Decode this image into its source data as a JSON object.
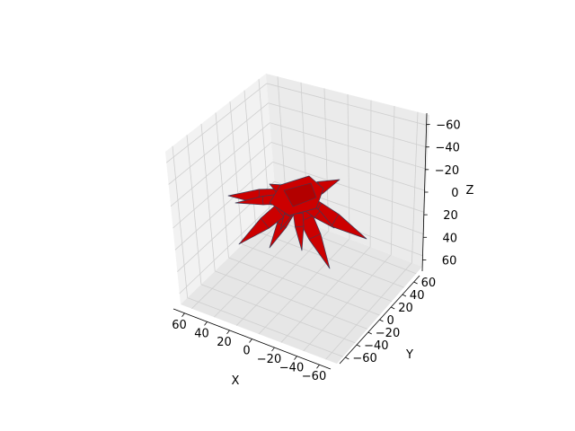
{
  "chart_data": {
    "type": "surface3d",
    "title": "",
    "xlabel": "X",
    "ylabel": "Y",
    "zlabel": "Z",
    "xlim": [
      -75,
      75
    ],
    "ylim": [
      -75,
      75
    ],
    "zlim": [
      -75,
      75
    ],
    "z_axis_inverted": true,
    "x_axis_inverted": true,
    "xticks": [
      "60",
      "40",
      "20",
      "0",
      "−20",
      "−40",
      "−60"
    ],
    "yticks": [
      "−60",
      "−40",
      "−20",
      "0",
      "20",
      "40",
      "60"
    ],
    "zticks": [
      "−60",
      "−40",
      "−20",
      "0",
      "20",
      "40",
      "60"
    ],
    "grid": true,
    "surface_color": "#cc0000",
    "edge_color": "#3a3a55",
    "pane_colors": [
      "#f2f2f2",
      "#ebebeb",
      "#e6e6e6"
    ],
    "shape": "star-shaped surface with about 8 pointed arms radiating from a central hub"
  }
}
